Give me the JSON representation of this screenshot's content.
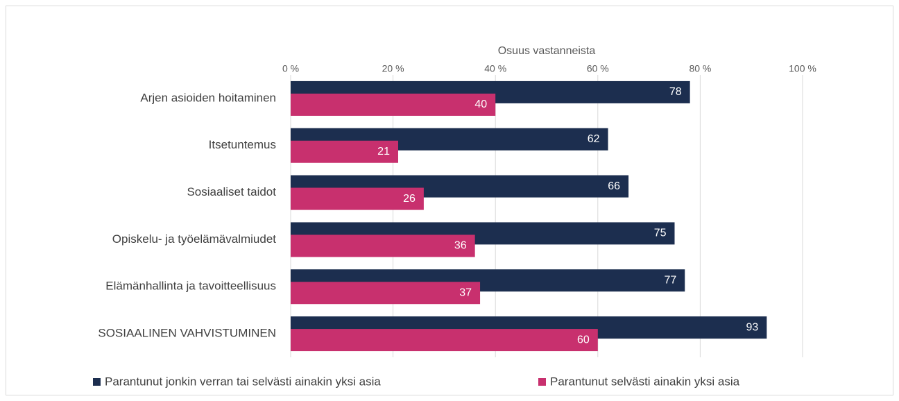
{
  "chart_data": {
    "type": "hbar",
    "xlabel": "Osuus vastanneista",
    "categories": [
      "Arjen asioiden hoitaminen",
      "Itsetuntemus",
      "Sosiaaliset taidot",
      "Opiskelu- ja työelämävalmiudet",
      "Elämänhallinta ja tavoitteellisuus",
      "SOSIAALINEN VAHVISTUMINEN"
    ],
    "series": [
      {
        "name": "Parantunut jonkin verran tai selvästi ainakin yksi asia",
        "color": "#1c2e4f",
        "values": [
          78,
          62,
          66,
          75,
          77,
          93
        ]
      },
      {
        "name": "Parantunut selvästi ainakin yksi asia",
        "color": "#c8306e",
        "values": [
          40,
          21,
          26,
          36,
          37,
          60
        ]
      }
    ],
    "xlim": [
      0,
      100
    ],
    "xticks": [
      {
        "value": 0,
        "label": "0 %"
      },
      {
        "value": 20,
        "label": "20 %"
      },
      {
        "value": 40,
        "label": "40 %"
      },
      {
        "value": 60,
        "label": "60 %"
      },
      {
        "value": 80,
        "label": "80 %"
      },
      {
        "value": 100,
        "label": "100 %"
      }
    ],
    "grid": true,
    "legend": "bottom"
  }
}
